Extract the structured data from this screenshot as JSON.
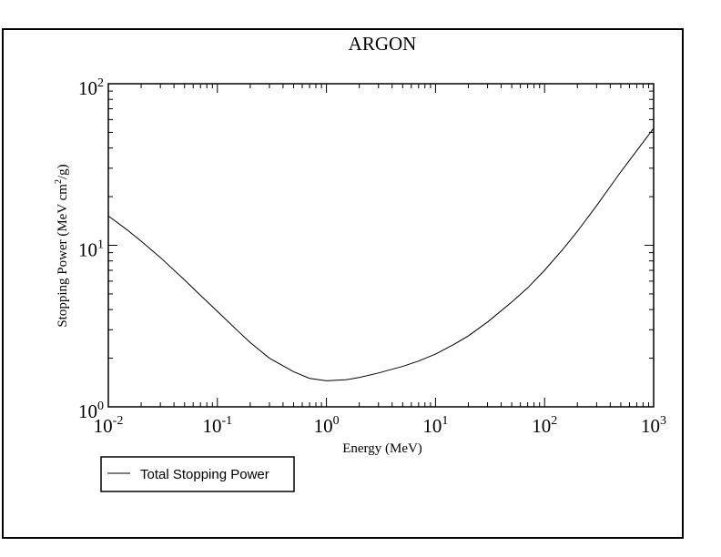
{
  "chart_data": {
    "type": "line",
    "title": "ARGON",
    "xlabel": "Energy (MeV)",
    "ylabel": "Stopping Power (MeV cm2/g)",
    "xscale": "log",
    "yscale": "log",
    "xlim": [
      0.01,
      1000
    ],
    "ylim": [
      1,
      100
    ],
    "x_ticks": [
      {
        "base": "10",
        "exp": "-2"
      },
      {
        "base": "10",
        "exp": "-1"
      },
      {
        "base": "10",
        "exp": "0"
      },
      {
        "base": "10",
        "exp": "1"
      },
      {
        "base": "10",
        "exp": "2"
      },
      {
        "base": "10",
        "exp": "3"
      }
    ],
    "y_ticks": [
      {
        "base": "10",
        "exp": "0"
      },
      {
        "base": "10",
        "exp": "1"
      },
      {
        "base": "10",
        "exp": "2"
      }
    ],
    "grid": false,
    "legend_position": "bottom-left, below plot",
    "series": [
      {
        "name": "Total Stopping Power",
        "color": "#000000",
        "x": [
          0.01,
          0.015,
          0.02,
          0.03,
          0.05,
          0.07,
          0.1,
          0.15,
          0.2,
          0.3,
          0.5,
          0.7,
          1,
          1.5,
          2,
          3,
          5,
          7,
          10,
          15,
          20,
          30,
          50,
          70,
          100,
          150,
          200,
          300,
          500,
          700,
          1000
        ],
        "y": [
          15.2,
          12.4,
          10.6,
          8.4,
          6.1,
          4.9,
          3.9,
          3.0,
          2.5,
          2.0,
          1.65,
          1.5,
          1.45,
          1.47,
          1.52,
          1.62,
          1.78,
          1.92,
          2.12,
          2.45,
          2.75,
          3.35,
          4.45,
          5.45,
          7.0,
          9.6,
          12.2,
          17.6,
          28.5,
          38.5,
          53.0
        ]
      }
    ]
  }
}
